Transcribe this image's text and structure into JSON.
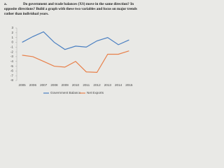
{
  "question": {
    "label": "a.",
    "lines": [
      "Do government and trade balances (XS) move in the same direction? In",
      "opposite directions? Build a graph with these two variables and focus on major trends",
      "rather than individual years."
    ]
  },
  "chart_data": {
    "type": "line",
    "categories": [
      "2005",
      "2006",
      "2007",
      "2008",
      "2009",
      "2010",
      "2011",
      "2012",
      "2013",
      "2014",
      "2015"
    ],
    "series": [
      {
        "name": "Government Balance",
        "color": "#4a7fc1",
        "values": [
          0,
          1.2,
          2.2,
          0,
          -1.5,
          -0.8,
          -1,
          0.3,
          1,
          -0.5,
          0.5
        ]
      },
      {
        "name": "Net Exports",
        "color": "#e8804a",
        "values": [
          -2.7,
          -3,
          -4,
          -5,
          -5.2,
          -4,
          -6.2,
          -6.3,
          -2.5,
          -2.5,
          -1.8
        ]
      }
    ],
    "ylim": [
      -8,
      3
    ],
    "yticks": [
      3,
      2,
      1,
      0,
      -1,
      -2,
      -3,
      -4,
      -5,
      -6,
      -7,
      -8
    ],
    "legend": "bottom"
  }
}
